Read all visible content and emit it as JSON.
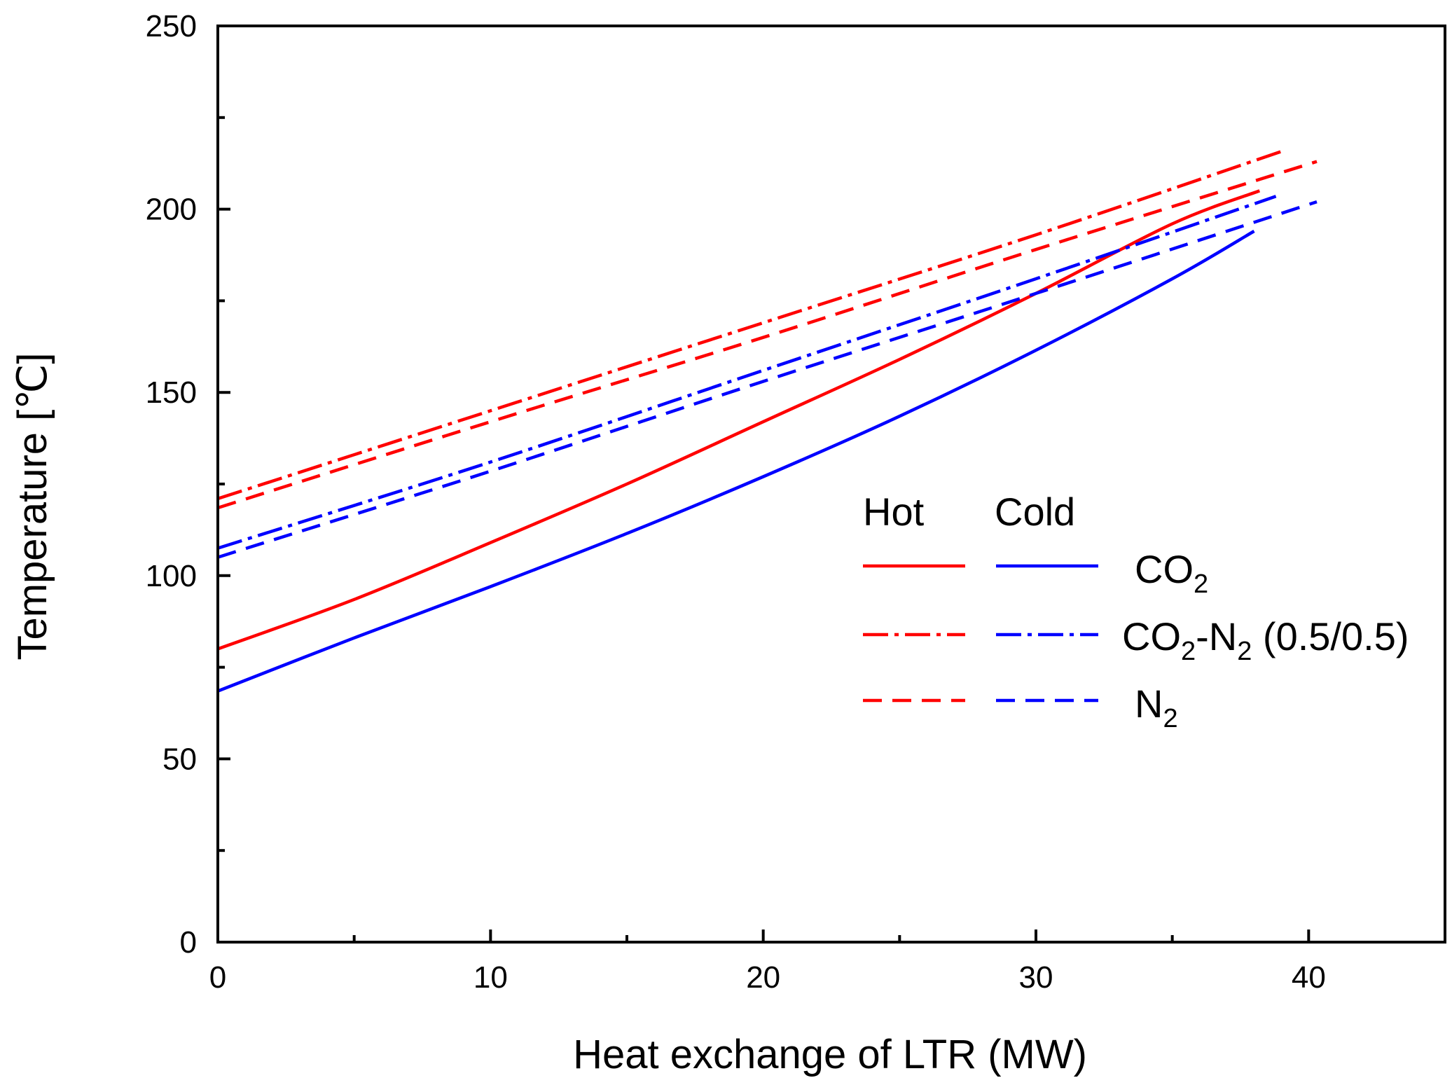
{
  "chart_data": {
    "type": "line",
    "title": "",
    "xlabel": "Heat exchange of LTR (MW)",
    "ylabel": "Temperature [℃]",
    "xlim": [
      0,
      45
    ],
    "ylim": [
      0,
      250
    ],
    "x_ticks": [
      0,
      10,
      20,
      30,
      40
    ],
    "x_minor_ticks": [
      5,
      15,
      25,
      35
    ],
    "y_ticks": [
      0,
      50,
      100,
      150,
      200,
      250
    ],
    "y_minor_ticks": [
      25,
      75,
      125,
      175,
      225
    ],
    "x_tick_labels": [
      "0",
      "10",
      "20",
      "30",
      "40"
    ],
    "y_tick_labels": [
      "0",
      "50",
      "100",
      "150",
      "200",
      "250"
    ],
    "grid": false,
    "legend": {
      "position": "right-middle",
      "header_hot": "Hot",
      "header_cold": "Cold",
      "entries": [
        {
          "label_main": "CO",
          "label_sub": "2",
          "label_rest": "",
          "label_sub2": "",
          "label_tail": "",
          "style": "solid"
        },
        {
          "label_main": "CO",
          "label_sub": "2",
          "label_rest": "-N",
          "label_sub2": "2",
          "label_tail": " (0.5/0.5)",
          "style": "dashdot"
        },
        {
          "label_main": "N",
          "label_sub": "2",
          "label_rest": "",
          "label_sub2": "",
          "label_tail": "",
          "style": "dashed"
        }
      ]
    },
    "colors": {
      "hot": "#ff0000",
      "cold": "#0000ff",
      "axis": "#000000"
    },
    "series": [
      {
        "name": "CO2 Hot",
        "side": "hot",
        "style": "solid",
        "color": "#ff0000",
        "x": [
          0,
          5,
          10,
          15,
          20,
          25,
          30,
          35,
          38.2
        ],
        "y": [
          80,
          93.5,
          109,
          125,
          142,
          159,
          177,
          196,
          205
        ]
      },
      {
        "name": "CO2 Cold",
        "side": "cold",
        "style": "solid",
        "color": "#0000ff",
        "x": [
          0,
          5,
          10,
          15,
          20,
          25,
          30,
          35,
          38
        ],
        "y": [
          68.5,
          83,
          97,
          111.5,
          127,
          143.5,
          161.5,
          181,
          194
        ]
      },
      {
        "name": "CO2-N2 (0.5/0.5) Hot",
        "side": "hot",
        "style": "dashdot",
        "color": "#ff0000",
        "x": [
          0,
          10,
          20,
          30,
          39.1
        ],
        "y": [
          121,
          145,
          169,
          193,
          216
        ]
      },
      {
        "name": "CO2-N2 (0.5/0.5) Cold",
        "side": "cold",
        "style": "dashdot",
        "color": "#0000ff",
        "x": [
          0,
          10,
          20,
          30,
          38.8
        ],
        "y": [
          107.5,
          131,
          156,
          181,
          203.5
        ]
      },
      {
        "name": "N2 Hot",
        "side": "hot",
        "style": "dashed",
        "color": "#ff0000",
        "x": [
          0,
          10,
          20,
          30,
          40.3
        ],
        "y": [
          118.5,
          142,
          165,
          189,
          213
        ]
      },
      {
        "name": "N2 Cold",
        "side": "cold",
        "style": "dashed",
        "color": "#0000ff",
        "x": [
          0,
          10,
          20,
          30,
          40.3
        ],
        "y": [
          105,
          128.5,
          153,
          177,
          202
        ]
      }
    ]
  }
}
